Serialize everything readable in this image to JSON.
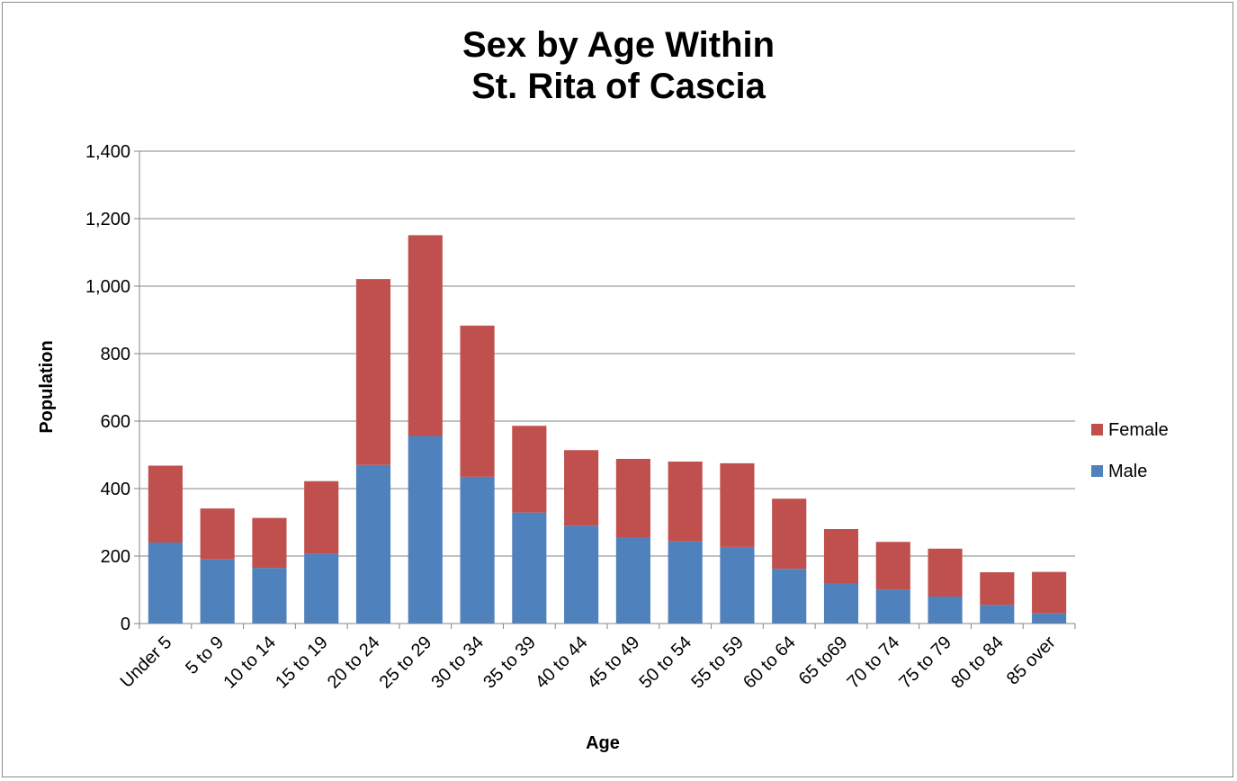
{
  "chart_data": {
    "type": "bar",
    "stacked": true,
    "title_lines": [
      "Sex by Age Within",
      "St. Rita of Cascia"
    ],
    "xlabel": "Age",
    "ylabel": "Population",
    "ylim": [
      0,
      1400
    ],
    "yticks": [
      "0",
      "200",
      "400",
      "600",
      "800",
      "1,000",
      "1,200",
      "1,400"
    ],
    "ytick_values": [
      0,
      200,
      400,
      600,
      800,
      1000,
      1200,
      1400
    ],
    "grid": true,
    "legend_position": "right",
    "categories": [
      "Under 5",
      "5 to 9",
      "10 to 14",
      "15 to 19",
      "20 to 24",
      "25 to 29",
      "30 to 34",
      "35 to 39",
      "40 to 44",
      "45 to 49",
      "50 to 54",
      "55 to 59",
      "60 to 64",
      "65 to69",
      "70 to 74",
      "75 to 79",
      "80 to 84",
      "85 over"
    ],
    "series": [
      {
        "name": "Male",
        "color": "#4f81bd",
        "values": [
          240,
          190,
          165,
          207,
          470,
          556,
          435,
          329,
          290,
          256,
          243,
          227,
          162,
          120,
          101,
          80,
          55,
          30
        ]
      },
      {
        "name": "Female",
        "color": "#c0504d",
        "values": [
          228,
          151,
          148,
          215,
          551,
          595,
          448,
          257,
          224,
          232,
          237,
          248,
          208,
          160,
          141,
          142,
          97,
          123
        ]
      }
    ],
    "legend_order": [
      "Female",
      "Male"
    ]
  }
}
